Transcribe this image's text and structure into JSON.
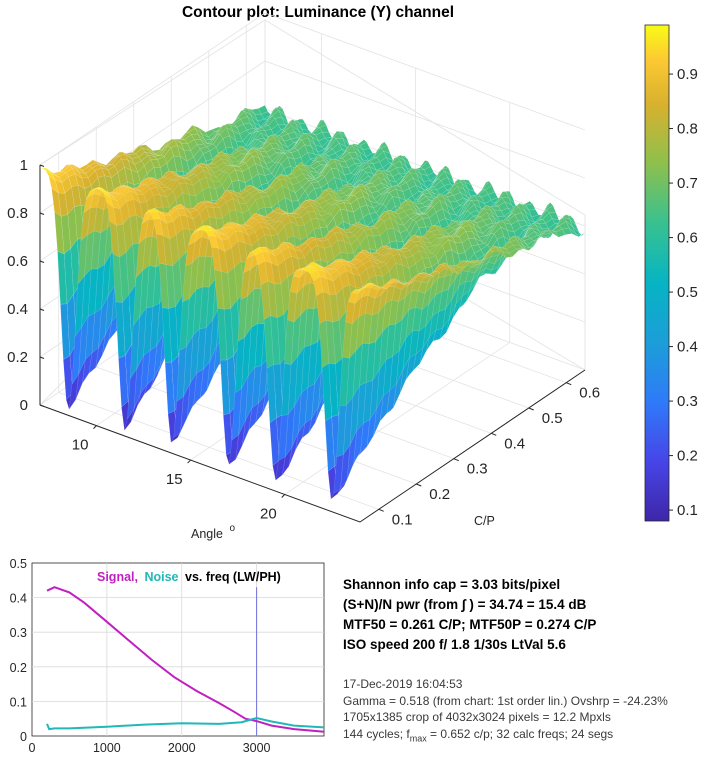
{
  "surface_plot": {
    "title": "Contour plot:  Luminance (Y) channel",
    "z_ticks": [
      "0",
      "0.2",
      "0.4",
      "0.6",
      "0.8",
      "1"
    ],
    "angle_ticks": [
      "10",
      "15",
      "20"
    ],
    "cp_ticks": [
      "0.1",
      "0.2",
      "0.3",
      "0.4",
      "0.5",
      "0.6"
    ],
    "angle_label": "Angle",
    "angle_unit_sup": "o",
    "cp_label": "C/P",
    "colormap": "parula",
    "colorbar_ticks": [
      "0.1",
      "0.2",
      "0.3",
      "0.4",
      "0.5",
      "0.6",
      "0.7",
      "0.8",
      "0.9"
    ]
  },
  "info": {
    "line1": "Shannon info cap =  3.03 bits/pixel",
    "line2": "(S+N)/N pwr (from ∫ ) = 34.74 = 15.4 dB",
    "line3": "MTF50 = 0.261 C/P;  MTF50P = 0.274 C/P",
    "line4": "ISO speed  200   f/ 1.8    1/30s   LtVal  5.6",
    "date": "17-Dec-2019 16:04:53",
    "gamma": "Gamma = 0.518 (from chart: 1st order lin.)  Ovshrp = -24.23%",
    "crop": "1705x1385 crop of 4032x3024 pixels = 12.2 Mpxls",
    "cycles_pre": "144 cycles; f",
    "cycles_sub": "max",
    "cycles_post": " = 0.652 c/p;  32 calc freqs;  24 segs"
  },
  "chart_data": [
    {
      "type": "surface",
      "title": "Contour plot:  Luminance (Y) channel",
      "xlabel": "C/P",
      "ylabel": "Angle o",
      "xlim": [
        0.05,
        0.65
      ],
      "ylim": [
        7,
        24
      ],
      "zlim": [
        0,
        1
      ],
      "colorbar_range": [
        0.08,
        0.99
      ],
      "dips_at_angle": [
        8.5,
        11.5,
        14,
        17,
        19.5,
        22.5
      ],
      "peak_value_low_freq": 0.98,
      "dip_value_low_freq": 0.03,
      "value_high_freq_approx": 0.6
    },
    {
      "type": "line",
      "title": "Signal, Noise vs. freq (LW/PH)",
      "xlim": [
        0,
        3900
      ],
      "ylim": [
        0,
        0.5
      ],
      "x_ticks": [
        0,
        1000,
        2000,
        3000
      ],
      "y_ticks": [
        0,
        0.1,
        0.2,
        0.3,
        0.4,
        0.5
      ],
      "vertical_marker_x": 3000,
      "series": [
        {
          "name": "Signal",
          "color": "#c020c0",
          "x": [
            200,
            300,
            500,
            700,
            1000,
            1300,
            1600,
            1900,
            2200,
            2500,
            2700,
            2850,
            3000,
            3200,
            3500,
            3900
          ],
          "y": [
            0.42,
            0.43,
            0.415,
            0.385,
            0.33,
            0.275,
            0.22,
            0.17,
            0.13,
            0.095,
            0.07,
            0.05,
            0.043,
            0.03,
            0.02,
            0.012
          ]
        },
        {
          "name": "Noise",
          "color": "#20b8b8",
          "x": [
            200,
            230,
            300,
            500,
            1000,
            1500,
            2000,
            2500,
            2800,
            3000,
            3200,
            3500,
            3900
          ],
          "y": [
            0.035,
            0.02,
            0.022,
            0.022,
            0.027,
            0.033,
            0.037,
            0.035,
            0.04,
            0.052,
            0.042,
            0.03,
            0.025
          ]
        }
      ]
    }
  ],
  "lower_chart": {
    "title_signal": "Signal,",
    "title_noise": "Noise",
    "title_rest": "vs. freq (LW/PH)",
    "y_ticks": [
      "0",
      "0.1",
      "0.2",
      "0.3",
      "0.4",
      "0.5"
    ],
    "x_ticks": [
      "0",
      "1000",
      "2000",
      "3000"
    ]
  },
  "colors": {
    "signal": "#c020c0",
    "noise": "#20b8b8",
    "marker": "#7070e0",
    "axis": "#262626"
  }
}
